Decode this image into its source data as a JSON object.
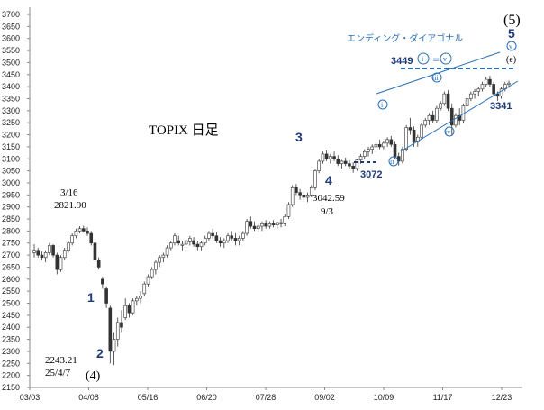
{
  "chart_data": {
    "type": "candlestick",
    "title": "TOPIX 日足",
    "y_ticks": [
      2150,
      2200,
      2250,
      2300,
      2350,
      2400,
      2450,
      2500,
      2550,
      2600,
      2650,
      2700,
      2750,
      2800,
      2850,
      2900,
      2950,
      3000,
      3050,
      3100,
      3150,
      3200,
      3250,
      3300,
      3350,
      3400,
      3450,
      3500,
      3550,
      3600,
      3650,
      3700
    ],
    "ylim": [
      2150,
      3700
    ],
    "x_ticks": [
      "03/03",
      "04/08",
      "05/16",
      "06/20",
      "07/28",
      "09/02",
      "10/09",
      "11/17",
      "12/23"
    ],
    "series": [
      {
        "values": [
          [
            2710,
            2745,
            2690,
            2720
          ],
          [
            2720,
            2730,
            2690,
            2700
          ],
          [
            2700,
            2715,
            2680,
            2690
          ],
          [
            2690,
            2720,
            2670,
            2710
          ],
          [
            2710,
            2750,
            2700,
            2740
          ],
          [
            2740,
            2745,
            2690,
            2700
          ],
          [
            2700,
            2710,
            2620,
            2640
          ],
          [
            2640,
            2700,
            2630,
            2690
          ],
          [
            2690,
            2730,
            2680,
            2720
          ],
          [
            2720,
            2760,
            2710,
            2750
          ],
          [
            2750,
            2790,
            2740,
            2780
          ],
          [
            2780,
            2810,
            2770,
            2800
          ],
          [
            2800,
            2820,
            2790,
            2810
          ],
          [
            2810,
            2822,
            2795,
            2800
          ],
          [
            2800,
            2815,
            2780,
            2790
          ],
          [
            2790,
            2800,
            2740,
            2750
          ],
          [
            2750,
            2760,
            2670,
            2680
          ],
          [
            2680,
            2690,
            2640,
            2650
          ],
          [
            2600,
            2610,
            2560,
            2580
          ],
          [
            2560,
            2570,
            2480,
            2500
          ],
          [
            2480,
            2490,
            2250,
            2300
          ],
          [
            2300,
            2380,
            2243,
            2350
          ],
          [
            2350,
            2440,
            2320,
            2420
          ],
          [
            2420,
            2470,
            2380,
            2400
          ],
          [
            2440,
            2520,
            2430,
            2490
          ],
          [
            2490,
            2500,
            2440,
            2460
          ],
          [
            2460,
            2520,
            2450,
            2510
          ],
          [
            2510,
            2530,
            2490,
            2520
          ],
          [
            2520,
            2550,
            2500,
            2530
          ],
          [
            2540,
            2590,
            2530,
            2580
          ],
          [
            2580,
            2620,
            2570,
            2610
          ],
          [
            2610,
            2650,
            2600,
            2640
          ],
          [
            2640,
            2680,
            2620,
            2670
          ],
          [
            2670,
            2700,
            2650,
            2690
          ],
          [
            2690,
            2710,
            2670,
            2700
          ],
          [
            2700,
            2740,
            2690,
            2730
          ],
          [
            2730,
            2760,
            2720,
            2750
          ],
          [
            2750,
            2790,
            2740,
            2780
          ],
          [
            2760,
            2780,
            2740,
            2750
          ],
          [
            2740,
            2760,
            2720,
            2745
          ],
          [
            2745,
            2770,
            2730,
            2760
          ],
          [
            2755,
            2780,
            2740,
            2770
          ],
          [
            2760,
            2775,
            2735,
            2745
          ],
          [
            2745,
            2760,
            2720,
            2735
          ],
          [
            2735,
            2760,
            2720,
            2750
          ],
          [
            2750,
            2780,
            2740,
            2770
          ],
          [
            2770,
            2800,
            2760,
            2790
          ],
          [
            2790,
            2810,
            2770,
            2780
          ],
          [
            2780,
            2795,
            2750,
            2760
          ],
          [
            2760,
            2775,
            2735,
            2750
          ],
          [
            2750,
            2770,
            2730,
            2760
          ],
          [
            2760,
            2790,
            2750,
            2780
          ],
          [
            2780,
            2800,
            2760,
            2770
          ],
          [
            2770,
            2790,
            2740,
            2760
          ],
          [
            2760,
            2780,
            2740,
            2770
          ],
          [
            2770,
            2800,
            2760,
            2790
          ],
          [
            2790,
            2850,
            2780,
            2840
          ],
          [
            2840,
            2860,
            2810,
            2820
          ],
          [
            2820,
            2840,
            2800,
            2810
          ],
          [
            2810,
            2830,
            2795,
            2820
          ],
          [
            2820,
            2840,
            2800,
            2830
          ],
          [
            2830,
            2845,
            2810,
            2820
          ],
          [
            2820,
            2840,
            2810,
            2830
          ],
          [
            2830,
            2845,
            2815,
            2825
          ],
          [
            2825,
            2840,
            2810,
            2835
          ],
          [
            2835,
            2850,
            2815,
            2830
          ],
          [
            2830,
            2870,
            2820,
            2860
          ],
          [
            2860,
            2920,
            2850,
            2910
          ],
          [
            2910,
            2990,
            2900,
            2980
          ],
          [
            2980,
            2995,
            2950,
            2960
          ],
          [
            2960,
            2975,
            2930,
            2950
          ],
          [
            2950,
            2965,
            2920,
            2940
          ],
          [
            2940,
            2960,
            2920,
            2950
          ],
          [
            2950,
            2990,
            2940,
            2980
          ],
          [
            2980,
            3060,
            2970,
            3050
          ],
          [
            3050,
            3100,
            3040,
            3090
          ],
          [
            3090,
            3130,
            3080,
            3120
          ],
          [
            3120,
            3135,
            3090,
            3100
          ],
          [
            3100,
            3120,
            3080,
            3110
          ],
          [
            3110,
            3130,
            3090,
            3100
          ],
          [
            3100,
            3115,
            3070,
            3080
          ],
          [
            3080,
            3095,
            3060,
            3090
          ],
          [
            3090,
            3105,
            3070,
            3080
          ],
          [
            3080,
            3095,
            3060,
            3070
          ],
          [
            3070,
            3085,
            3042,
            3060
          ],
          [
            3060,
            3100,
            3050,
            3095
          ],
          [
            3095,
            3120,
            3080,
            3110
          ],
          [
            3110,
            3140,
            3100,
            3130
          ],
          [
            3130,
            3150,
            3110,
            3140
          ],
          [
            3140,
            3160,
            3120,
            3150
          ],
          [
            3150,
            3170,
            3130,
            3160
          ],
          [
            3160,
            3180,
            3140,
            3150
          ],
          [
            3150,
            3175,
            3140,
            3165
          ],
          [
            3165,
            3190,
            3150,
            3180
          ],
          [
            3180,
            3195,
            3150,
            3160
          ],
          [
            3160,
            3170,
            3100,
            3110
          ],
          [
            3110,
            3125,
            3072,
            3090
          ],
          [
            3090,
            3150,
            3080,
            3140
          ],
          [
            3140,
            3240,
            3130,
            3230
          ],
          [
            3230,
            3270,
            3200,
            3220
          ],
          [
            3220,
            3235,
            3150,
            3170
          ],
          [
            3170,
            3200,
            3150,
            3190
          ],
          [
            3190,
            3250,
            3180,
            3240
          ],
          [
            3240,
            3270,
            3230,
            3260
          ],
          [
            3260,
            3290,
            3240,
            3280
          ],
          [
            3280,
            3300,
            3250,
            3260
          ],
          [
            3260,
            3320,
            3250,
            3310
          ],
          [
            3310,
            3340,
            3300,
            3330
          ],
          [
            3330,
            3380,
            3320,
            3370
          ],
          [
            3370,
            3385,
            3300,
            3310
          ],
          [
            3310,
            3330,
            3200,
            3240
          ],
          [
            3240,
            3290,
            3230,
            3280
          ],
          [
            3280,
            3310,
            3240,
            3260
          ],
          [
            3260,
            3330,
            3250,
            3320
          ],
          [
            3320,
            3360,
            3310,
            3350
          ],
          [
            3350,
            3380,
            3340,
            3370
          ],
          [
            3370,
            3390,
            3350,
            3380
          ],
          [
            3380,
            3400,
            3360,
            3390
          ],
          [
            3390,
            3420,
            3380,
            3410
          ],
          [
            3410,
            3440,
            3400,
            3430
          ],
          [
            3430,
            3445,
            3400,
            3410
          ],
          [
            3410,
            3420,
            3360,
            3370
          ],
          [
            3370,
            3380,
            3341,
            3360
          ],
          [
            3360,
            3400,
            3350,
            3390
          ],
          [
            3390,
            3420,
            3380,
            3410
          ],
          [
            3410,
            3425,
            3395,
            3415
          ]
        ]
      }
    ],
    "annotations": {
      "text_3449": "3449",
      "text_3341": "3341",
      "text_3072": "3072",
      "text_3042": "3042.59",
      "text_93": "9/3",
      "text_316": "3/16",
      "text_2821": "2821.90",
      "text_2243": "2243.21",
      "text_2547": "25/4/7",
      "wave_1": "1",
      "wave_2": "2",
      "wave_3": "3",
      "wave_4": "4",
      "wave_5": "5",
      "wave_big4": "(4)",
      "wave_big5": "(5)",
      "ending": "エンディング・ダイアゴナル",
      "sub_i": "i",
      "sub_ii": "ii",
      "sub_iii": "iii",
      "sub_iv": "iv",
      "sub_v": "v",
      "sub_e": "(e)",
      "eq": "="
    },
    "colors": {
      "candle": "#333333",
      "wave": "#1f3b7a",
      "channel": "#2a6fb5",
      "axis": "#888888"
    }
  }
}
